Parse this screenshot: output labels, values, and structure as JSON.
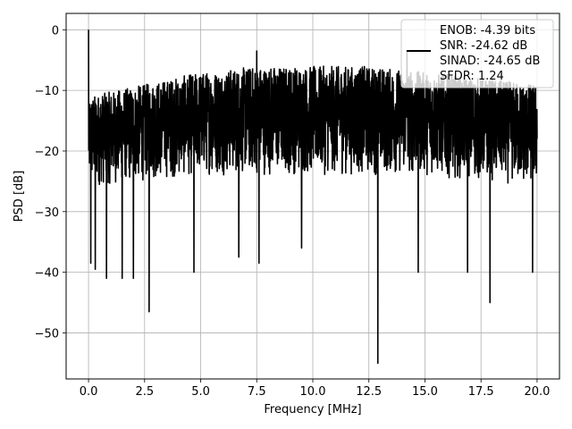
{
  "chart_data": {
    "type": "line",
    "xlabel": "Frequency [MHz]",
    "ylabel": "PSD [dB]",
    "xlim": [
      -0.999,
      20.999
    ],
    "ylim": [
      -57.6,
      2.7
    ],
    "xticks": [
      0.0,
      2.5,
      5.0,
      7.5,
      10.0,
      12.5,
      15.0,
      17.5,
      20.0
    ],
    "xtick_labels": [
      "0.0",
      "2.5",
      "5.0",
      "7.5",
      "10.0",
      "12.5",
      "15.0",
      "17.5",
      "20.0"
    ],
    "yticks": [
      0,
      -10,
      -20,
      -30,
      -40,
      -50
    ],
    "ytick_labels": [
      "0",
      "−10",
      "−20",
      "−30",
      "−40",
      "−50"
    ],
    "grid": true,
    "legend_location": "top-right",
    "legend_lines": [
      "ENOB: -4.39 bits",
      "SNR: -24.62 dB",
      "SINAD: -24.65 dB",
      "SFDR: 1.24"
    ],
    "series": [
      {
        "color": "#000000",
        "x_range": [
          0.0,
          20.0
        ],
        "noise_band_upper": [
          [
            0.0,
            -11
          ],
          [
            2.5,
            -9
          ],
          [
            5.0,
            -7
          ],
          [
            7.5,
            -6
          ],
          [
            10.0,
            -6
          ],
          [
            12.5,
            -6
          ],
          [
            15.0,
            -7
          ],
          [
            17.5,
            -8
          ],
          [
            20.0,
            -9
          ]
        ],
        "noise_band_lower": [
          [
            0.0,
            -26
          ],
          [
            2.5,
            -25
          ],
          [
            5.0,
            -24
          ],
          [
            7.5,
            -24
          ],
          [
            10.0,
            -24
          ],
          [
            12.5,
            -24
          ],
          [
            15.0,
            -24
          ],
          [
            17.5,
            -25
          ],
          [
            20.0,
            -26
          ]
        ],
        "peaks": [
          {
            "x": 0.0,
            "y": 0.0
          },
          {
            "x": 0.02,
            "y": -13
          },
          {
            "x": 7.5,
            "y": -3.5
          },
          {
            "x": 14.2,
            "y": -3.5
          }
        ],
        "dips": [
          {
            "x": 0.1,
            "y": -38.5
          },
          {
            "x": 0.3,
            "y": -39.5
          },
          {
            "x": 0.8,
            "y": -41
          },
          {
            "x": 1.5,
            "y": -41
          },
          {
            "x": 2.0,
            "y": -41
          },
          {
            "x": 2.7,
            "y": -46.5
          },
          {
            "x": 4.7,
            "y": -40
          },
          {
            "x": 6.7,
            "y": -37.5
          },
          {
            "x": 7.6,
            "y": -38.5
          },
          {
            "x": 9.5,
            "y": -36
          },
          {
            "x": 12.9,
            "y": -55
          },
          {
            "x": 14.7,
            "y": -40
          },
          {
            "x": 16.9,
            "y": -40
          },
          {
            "x": 17.9,
            "y": -45
          },
          {
            "x": 19.8,
            "y": -40
          }
        ]
      }
    ]
  }
}
